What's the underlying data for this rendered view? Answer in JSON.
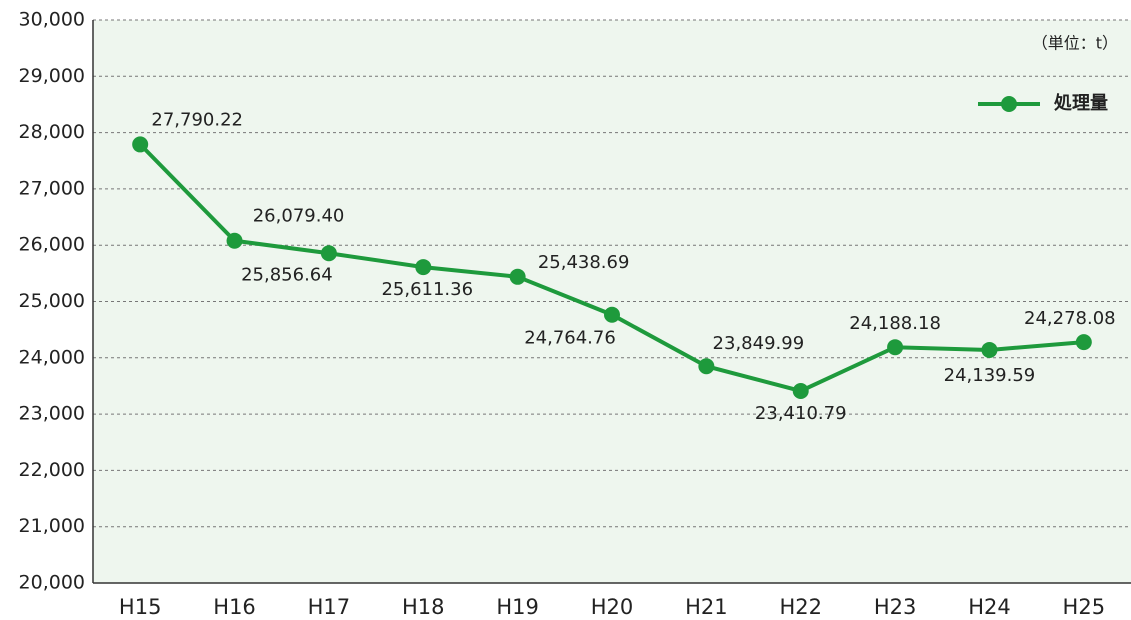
{
  "chart_data": {
    "type": "line",
    "annotation": "（単位：t）",
    "categories": [
      "H15",
      "H16",
      "H17",
      "H18",
      "H19",
      "H20",
      "H21",
      "H22",
      "H23",
      "H24",
      "H25"
    ],
    "series": [
      {
        "name": "処理量",
        "color": "#1e9a3c",
        "values": [
          27790.22,
          26079.4,
          25856.64,
          25611.36,
          25438.69,
          24764.76,
          23849.99,
          23410.79,
          24188.18,
          24139.59,
          24278.08
        ],
        "value_labels": [
          "27,790.22",
          "26,079.40",
          "25,856.64",
          "25,611.36",
          "25,438.69",
          "24,764.76",
          "23,849.99",
          "23,410.79",
          "24,188.18",
          "24,139.59",
          "24,278.08"
        ]
      }
    ],
    "ylim": [
      20000,
      30000
    ],
    "yticks": [
      {
        "value": 20000,
        "label": "20,000"
      },
      {
        "value": 21000,
        "label": "21,000"
      },
      {
        "value": 22000,
        "label": "22,000"
      },
      {
        "value": 23000,
        "label": "23,000"
      },
      {
        "value": 24000,
        "label": "24,000"
      },
      {
        "value": 25000,
        "label": "25,000"
      },
      {
        "value": 26000,
        "label": "26,000"
      },
      {
        "value": 27000,
        "label": "27,000"
      },
      {
        "value": 28000,
        "label": "28,000"
      },
      {
        "value": 29000,
        "label": "29,000"
      },
      {
        "value": 30000,
        "label": "30,000"
      }
    ],
    "grid": true,
    "legend": "upper right"
  }
}
